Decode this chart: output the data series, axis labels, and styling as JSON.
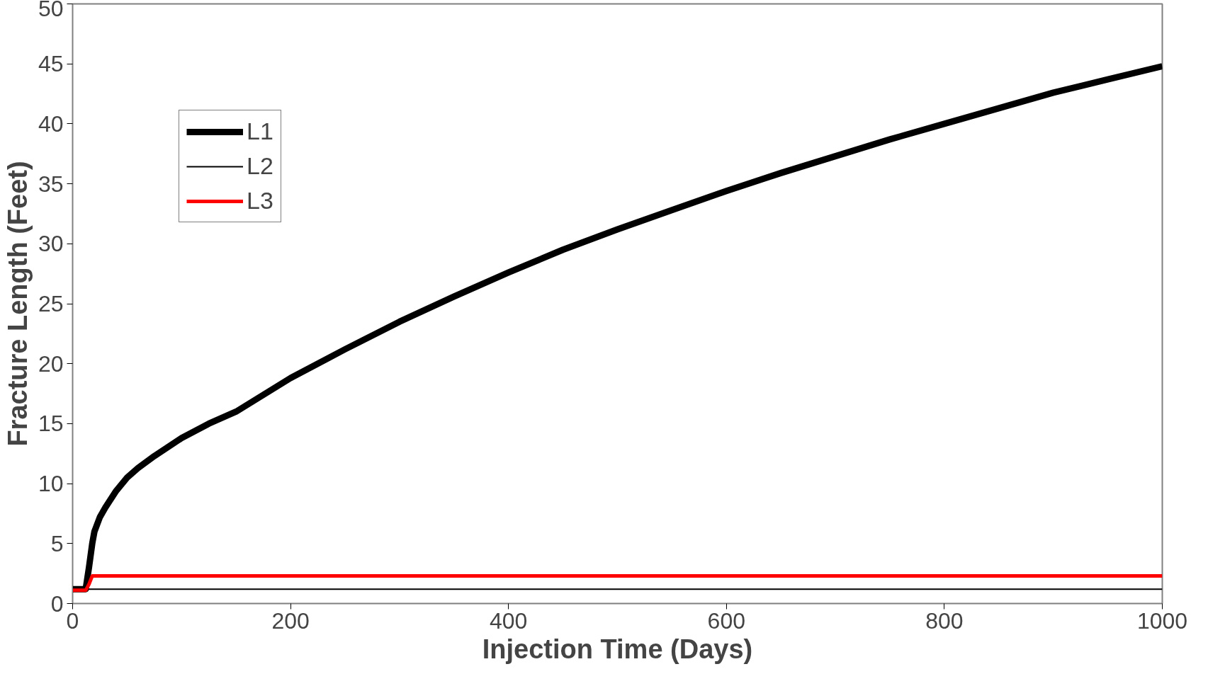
{
  "chart_data": {
    "type": "line",
    "xlabel": "Injection Time (Days)",
    "ylabel": "Fracture Length (Feet)",
    "xlim": [
      0,
      1000
    ],
    "xticks": [
      0,
      200,
      400,
      600,
      800,
      1000
    ],
    "ylim": [
      0,
      50
    ],
    "yticks": [
      0,
      5,
      10,
      15,
      20,
      25,
      30,
      35,
      40,
      45,
      50
    ],
    "grid": false,
    "legend": "top left",
    "line_style": "solid",
    "series": [
      {
        "name": "L1",
        "color": "#000000",
        "x": [
          0,
          12,
          15,
          18,
          20,
          25,
          30,
          40,
          50,
          60,
          75,
          100,
          125,
          150,
          175,
          200,
          250,
          300,
          350,
          400,
          450,
          500,
          550,
          600,
          650,
          700,
          750,
          800,
          850,
          900,
          950,
          1000
        ],
        "values": [
          1.2,
          1.2,
          3,
          5,
          6,
          7.2,
          8,
          9.4,
          10.5,
          11.3,
          12.3,
          13.8,
          15,
          16,
          17.4,
          18.8,
          21.2,
          23.5,
          25.6,
          27.6,
          29.5,
          31.2,
          32.8,
          34.4,
          35.9,
          37.3,
          38.7,
          40,
          41.3,
          42.6,
          43.7,
          44.8
        ]
      },
      {
        "name": "L2",
        "color": "#000000",
        "x": [
          0,
          1000
        ],
        "values": [
          1.2,
          1.2
        ]
      },
      {
        "name": "L3",
        "color": "#ff0000",
        "x": [
          0,
          12,
          15,
          18,
          1000
        ],
        "values": [
          1.1,
          1.1,
          1.6,
          2.3,
          2.3
        ]
      }
    ]
  }
}
